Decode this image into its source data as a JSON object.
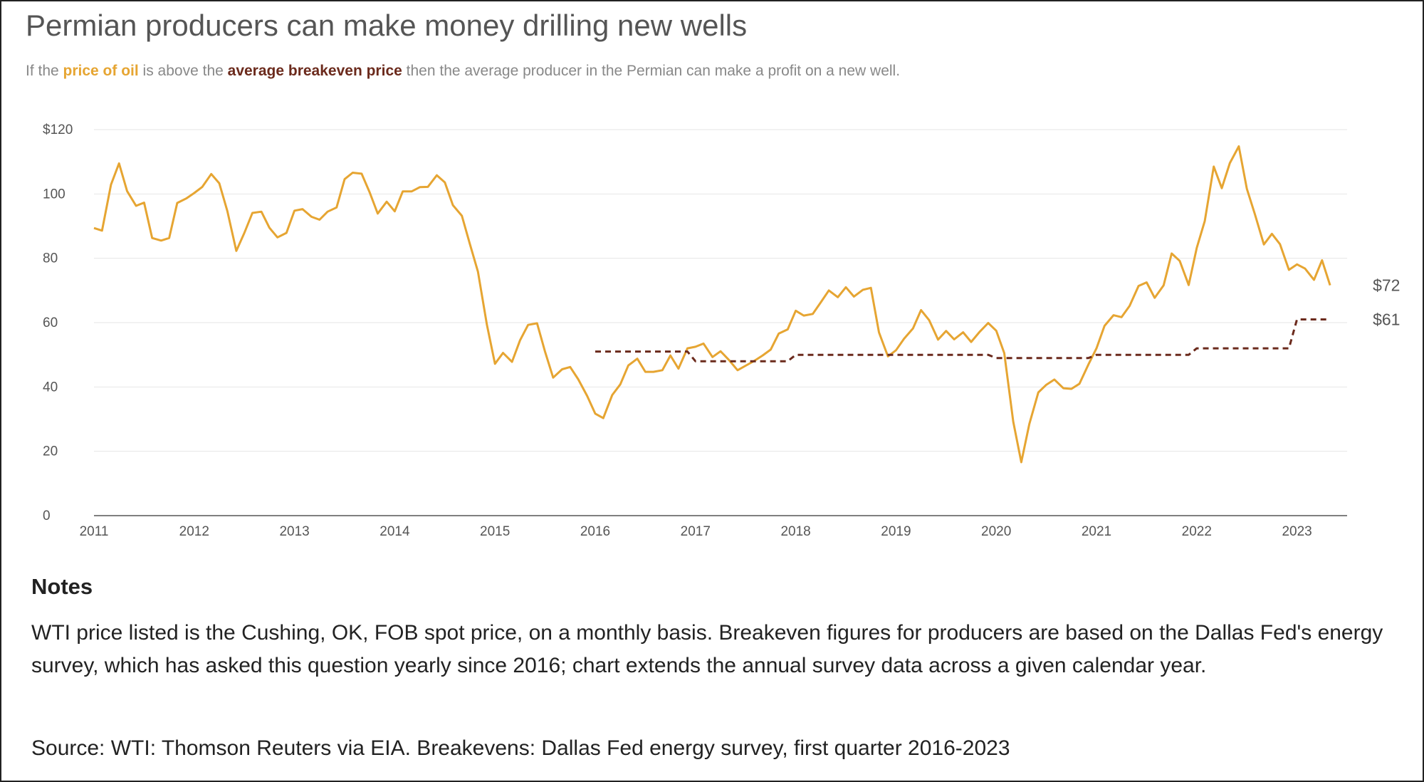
{
  "title": "Permian producers can make money drilling new wells",
  "subtitle": {
    "part1": "If the ",
    "oil_label": "price of oil",
    "part2": " is above the ",
    "breakeven_label": "average breakeven price",
    "part3": " then the average producer in the Permian can make a profit on a new well."
  },
  "notes": {
    "heading": "Notes",
    "body": "WTI price listed is the Cushing, OK, FOB spot price, on a monthly basis. Breakeven figures for producers are based on the Dallas Fed's energy survey, which has asked this question yearly since 2016; chart extends the annual survey data across a given calendar year.",
    "source": "Source: WTI: Thomson Reuters via EIA. Breakevens: Dallas Fed energy survey, first quarter 2016-2023"
  },
  "colors": {
    "oil": "#e6a532",
    "breakeven": "#6b2a1c",
    "grid": "#e6e6e6",
    "axis": "#555555"
  },
  "chart_data": {
    "type": "line",
    "xlim": [
      2011,
      2023.5
    ],
    "ylim": [
      0,
      120
    ],
    "y_ticks": [
      0,
      20,
      40,
      60,
      80,
      100,
      120
    ],
    "y_tick_labels": [
      "0",
      "20",
      "40",
      "60",
      "80",
      "100",
      "$120"
    ],
    "x_ticks": [
      2011,
      2012,
      2013,
      2014,
      2015,
      2016,
      2017,
      2018,
      2019,
      2020,
      2021,
      2022,
      2023
    ],
    "x_tick_labels": [
      "2011",
      "2012",
      "2013",
      "2014",
      "2015",
      "2016",
      "2017",
      "2018",
      "2019",
      "2020",
      "2021",
      "2022",
      "2023"
    ],
    "grid": true,
    "series": [
      {
        "name": "price of oil",
        "style": "solid",
        "end_label": "$72",
        "points": [
          [
            2011.0,
            89.4
          ],
          [
            2011.08,
            88.6
          ],
          [
            2011.17,
            102.9
          ],
          [
            2011.25,
            109.5
          ],
          [
            2011.33,
            100.9
          ],
          [
            2011.42,
            96.3
          ],
          [
            2011.5,
            97.3
          ],
          [
            2011.58,
            86.3
          ],
          [
            2011.67,
            85.5
          ],
          [
            2011.75,
            86.3
          ],
          [
            2011.83,
            97.2
          ],
          [
            2011.92,
            98.6
          ],
          [
            2012.0,
            100.3
          ],
          [
            2012.08,
            102.2
          ],
          [
            2012.17,
            106.2
          ],
          [
            2012.25,
            103.3
          ],
          [
            2012.33,
            94.7
          ],
          [
            2012.42,
            82.3
          ],
          [
            2012.5,
            87.9
          ],
          [
            2012.58,
            94.1
          ],
          [
            2012.67,
            94.5
          ],
          [
            2012.75,
            89.5
          ],
          [
            2012.83,
            86.5
          ],
          [
            2012.92,
            87.9
          ],
          [
            2013.0,
            94.8
          ],
          [
            2013.08,
            95.3
          ],
          [
            2013.17,
            92.9
          ],
          [
            2013.25,
            92.0
          ],
          [
            2013.33,
            94.5
          ],
          [
            2013.42,
            95.8
          ],
          [
            2013.5,
            104.6
          ],
          [
            2013.58,
            106.6
          ],
          [
            2013.67,
            106.3
          ],
          [
            2013.75,
            100.5
          ],
          [
            2013.83,
            93.9
          ],
          [
            2013.92,
            97.6
          ],
          [
            2014.0,
            94.6
          ],
          [
            2014.08,
            100.8
          ],
          [
            2014.17,
            100.8
          ],
          [
            2014.25,
            102.1
          ],
          [
            2014.33,
            102.2
          ],
          [
            2014.42,
            105.8
          ],
          [
            2014.5,
            103.6
          ],
          [
            2014.58,
            96.5
          ],
          [
            2014.67,
            93.2
          ],
          [
            2014.75,
            84.4
          ],
          [
            2014.83,
            75.8
          ],
          [
            2014.92,
            59.3
          ],
          [
            2015.0,
            47.2
          ],
          [
            2015.08,
            50.6
          ],
          [
            2015.17,
            47.8
          ],
          [
            2015.25,
            54.5
          ],
          [
            2015.33,
            59.3
          ],
          [
            2015.42,
            59.8
          ],
          [
            2015.5,
            50.9
          ],
          [
            2015.58,
            42.9
          ],
          [
            2015.67,
            45.5
          ],
          [
            2015.75,
            46.2
          ],
          [
            2015.83,
            42.4
          ],
          [
            2015.92,
            37.2
          ],
          [
            2016.0,
            31.7
          ],
          [
            2016.08,
            30.3
          ],
          [
            2016.17,
            37.5
          ],
          [
            2016.25,
            40.8
          ],
          [
            2016.33,
            46.7
          ],
          [
            2016.42,
            48.8
          ],
          [
            2016.5,
            44.7
          ],
          [
            2016.58,
            44.7
          ],
          [
            2016.67,
            45.2
          ],
          [
            2016.75,
            49.8
          ],
          [
            2016.83,
            45.7
          ],
          [
            2016.92,
            52.0
          ],
          [
            2017.0,
            52.5
          ],
          [
            2017.08,
            53.5
          ],
          [
            2017.17,
            49.3
          ],
          [
            2017.25,
            51.1
          ],
          [
            2017.33,
            48.5
          ],
          [
            2017.42,
            45.2
          ],
          [
            2017.5,
            46.6
          ],
          [
            2017.58,
            48.0
          ],
          [
            2017.67,
            49.8
          ],
          [
            2017.75,
            51.6
          ],
          [
            2017.83,
            56.6
          ],
          [
            2017.92,
            57.9
          ],
          [
            2018.0,
            63.7
          ],
          [
            2018.08,
            62.2
          ],
          [
            2018.17,
            62.7
          ],
          [
            2018.25,
            66.3
          ],
          [
            2018.33,
            70.0
          ],
          [
            2018.42,
            67.9
          ],
          [
            2018.5,
            71.0
          ],
          [
            2018.58,
            68.1
          ],
          [
            2018.67,
            70.2
          ],
          [
            2018.75,
            70.8
          ],
          [
            2018.83,
            57.0
          ],
          [
            2018.92,
            49.5
          ],
          [
            2019.0,
            51.4
          ],
          [
            2019.08,
            55.0
          ],
          [
            2019.17,
            58.2
          ],
          [
            2019.25,
            63.9
          ],
          [
            2019.33,
            60.8
          ],
          [
            2019.42,
            54.7
          ],
          [
            2019.5,
            57.4
          ],
          [
            2019.58,
            54.8
          ],
          [
            2019.67,
            57.0
          ],
          [
            2019.75,
            54.0
          ],
          [
            2019.83,
            57.0
          ],
          [
            2019.92,
            59.9
          ],
          [
            2020.0,
            57.5
          ],
          [
            2020.08,
            50.5
          ],
          [
            2020.17,
            29.2
          ],
          [
            2020.25,
            16.6
          ],
          [
            2020.33,
            28.5
          ],
          [
            2020.42,
            38.3
          ],
          [
            2020.5,
            40.7
          ],
          [
            2020.58,
            42.3
          ],
          [
            2020.67,
            39.6
          ],
          [
            2020.75,
            39.4
          ],
          [
            2020.83,
            41.0
          ],
          [
            2020.92,
            47.0
          ],
          [
            2021.0,
            52.0
          ],
          [
            2021.08,
            59.0
          ],
          [
            2021.17,
            62.3
          ],
          [
            2021.25,
            61.7
          ],
          [
            2021.33,
            65.2
          ],
          [
            2021.42,
            71.4
          ],
          [
            2021.5,
            72.5
          ],
          [
            2021.58,
            67.7
          ],
          [
            2021.67,
            71.6
          ],
          [
            2021.75,
            81.5
          ],
          [
            2021.83,
            79.2
          ],
          [
            2021.92,
            71.7
          ],
          [
            2022.0,
            83.2
          ],
          [
            2022.08,
            91.6
          ],
          [
            2022.17,
            108.5
          ],
          [
            2022.25,
            101.8
          ],
          [
            2022.33,
            109.6
          ],
          [
            2022.42,
            114.8
          ],
          [
            2022.5,
            101.6
          ],
          [
            2022.58,
            93.7
          ],
          [
            2022.67,
            84.3
          ],
          [
            2022.75,
            87.6
          ],
          [
            2022.83,
            84.4
          ],
          [
            2022.92,
            76.4
          ],
          [
            2023.0,
            78.1
          ],
          [
            2023.08,
            76.8
          ],
          [
            2023.17,
            73.3
          ],
          [
            2023.25,
            79.4
          ],
          [
            2023.33,
            71.6
          ]
        ]
      },
      {
        "name": "average breakeven price",
        "style": "dashed",
        "end_label": "$61",
        "points": [
          [
            2016.0,
            51
          ],
          [
            2016.92,
            51
          ],
          [
            2017.0,
            48
          ],
          [
            2017.92,
            48
          ],
          [
            2018.0,
            50
          ],
          [
            2018.92,
            50
          ],
          [
            2019.0,
            50
          ],
          [
            2019.92,
            50
          ],
          [
            2020.0,
            49
          ],
          [
            2020.92,
            49
          ],
          [
            2021.0,
            50
          ],
          [
            2021.92,
            50
          ],
          [
            2022.0,
            52
          ],
          [
            2022.92,
            52
          ],
          [
            2023.0,
            61
          ],
          [
            2023.33,
            61
          ]
        ]
      }
    ]
  }
}
